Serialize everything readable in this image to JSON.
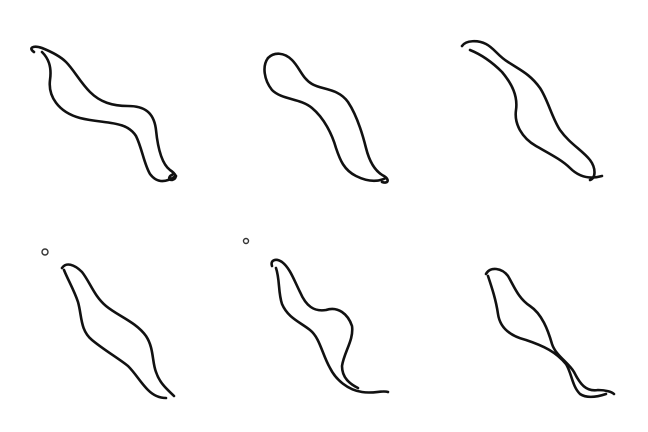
{
  "sketches": [
    {
      "shape": "wavy-river-outline"
    },
    {
      "shape": "wavy-river-outline"
    },
    {
      "shape": "wavy-river-outline"
    },
    {
      "shape": "wavy-river-outline",
      "marker": "small-circle"
    },
    {
      "shape": "wavy-river-outline",
      "marker": "small-circle"
    },
    {
      "shape": "wavy-river-outline"
    }
  ],
  "colors": {
    "background": "#ffffff",
    "ink": "#111111"
  }
}
